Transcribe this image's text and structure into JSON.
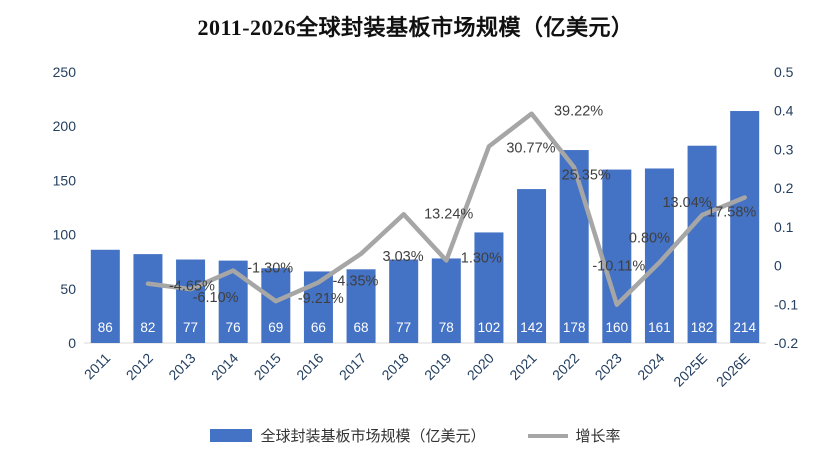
{
  "chart_data": {
    "type": "bar",
    "subtype": "bar+line combo, dual axis",
    "title": "2011-2026全球封装基板市场规模（亿美元）",
    "categories": [
      "2011",
      "2012",
      "2013",
      "2014",
      "2015",
      "2016",
      "2017",
      "2018",
      "2019",
      "2020",
      "2021",
      "2022",
      "2023",
      "2024",
      "2025E",
      "2026E"
    ],
    "bar_series": {
      "name": "全球封装基板市场规模（亿美元）",
      "values": [
        86,
        82,
        77,
        76,
        69,
        66,
        68,
        77,
        78,
        102,
        142,
        178,
        160,
        161,
        182,
        214
      ],
      "color": "#4472C4",
      "value_label_color": "#ffffff"
    },
    "line_series": {
      "name": "增长率",
      "color": "#A6A6A6",
      "label_color": "#3f3f3f",
      "values_percent": [
        null,
        -4.65,
        -6.1,
        -1.3,
        -9.21,
        -4.35,
        3.03,
        13.24,
        1.3,
        30.77,
        39.22,
        25.35,
        -10.11,
        0.8,
        13.04,
        17.58
      ],
      "labels": [
        "",
        "-4.65%",
        "-6.10%",
        "-1.30%",
        "-9.21%",
        "-4.35%",
        "3.03%",
        "13.24%",
        "1.30%",
        "30.77%",
        "39.22%",
        "25.35%",
        "-10.11%",
        "0.80%",
        "13.04%",
        "17.58%"
      ],
      "label_offsets": [
        null,
        [
          44,
          7
        ],
        [
          25,
          13
        ],
        [
          37,
          2
        ],
        [
          45,
          2
        ],
        [
          37,
          3
        ],
        [
          42,
          7
        ],
        [
          45,
          4
        ],
        [
          35,
          2
        ],
        [
          42,
          6
        ],
        [
          47,
          2
        ],
        [
          12,
          12
        ],
        [
          2,
          -34
        ],
        [
          -10,
          -20
        ],
        [
          -15,
          -8
        ],
        [
          -13,
          19
        ]
      ]
    },
    "axis_left": {
      "min": 0,
      "max": 250,
      "ticks": [
        "0",
        "50",
        "100",
        "150",
        "200",
        "250"
      ]
    },
    "axis_right": {
      "min": -0.2,
      "max": 0.5,
      "ticks": [
        "-0.2",
        "-0.1",
        "0",
        "0.1",
        "0.2",
        "0.3",
        "0.4",
        "0.5"
      ]
    },
    "axis_label_color": "#243F60",
    "grid": "off",
    "legend_position": "bottom-center"
  }
}
